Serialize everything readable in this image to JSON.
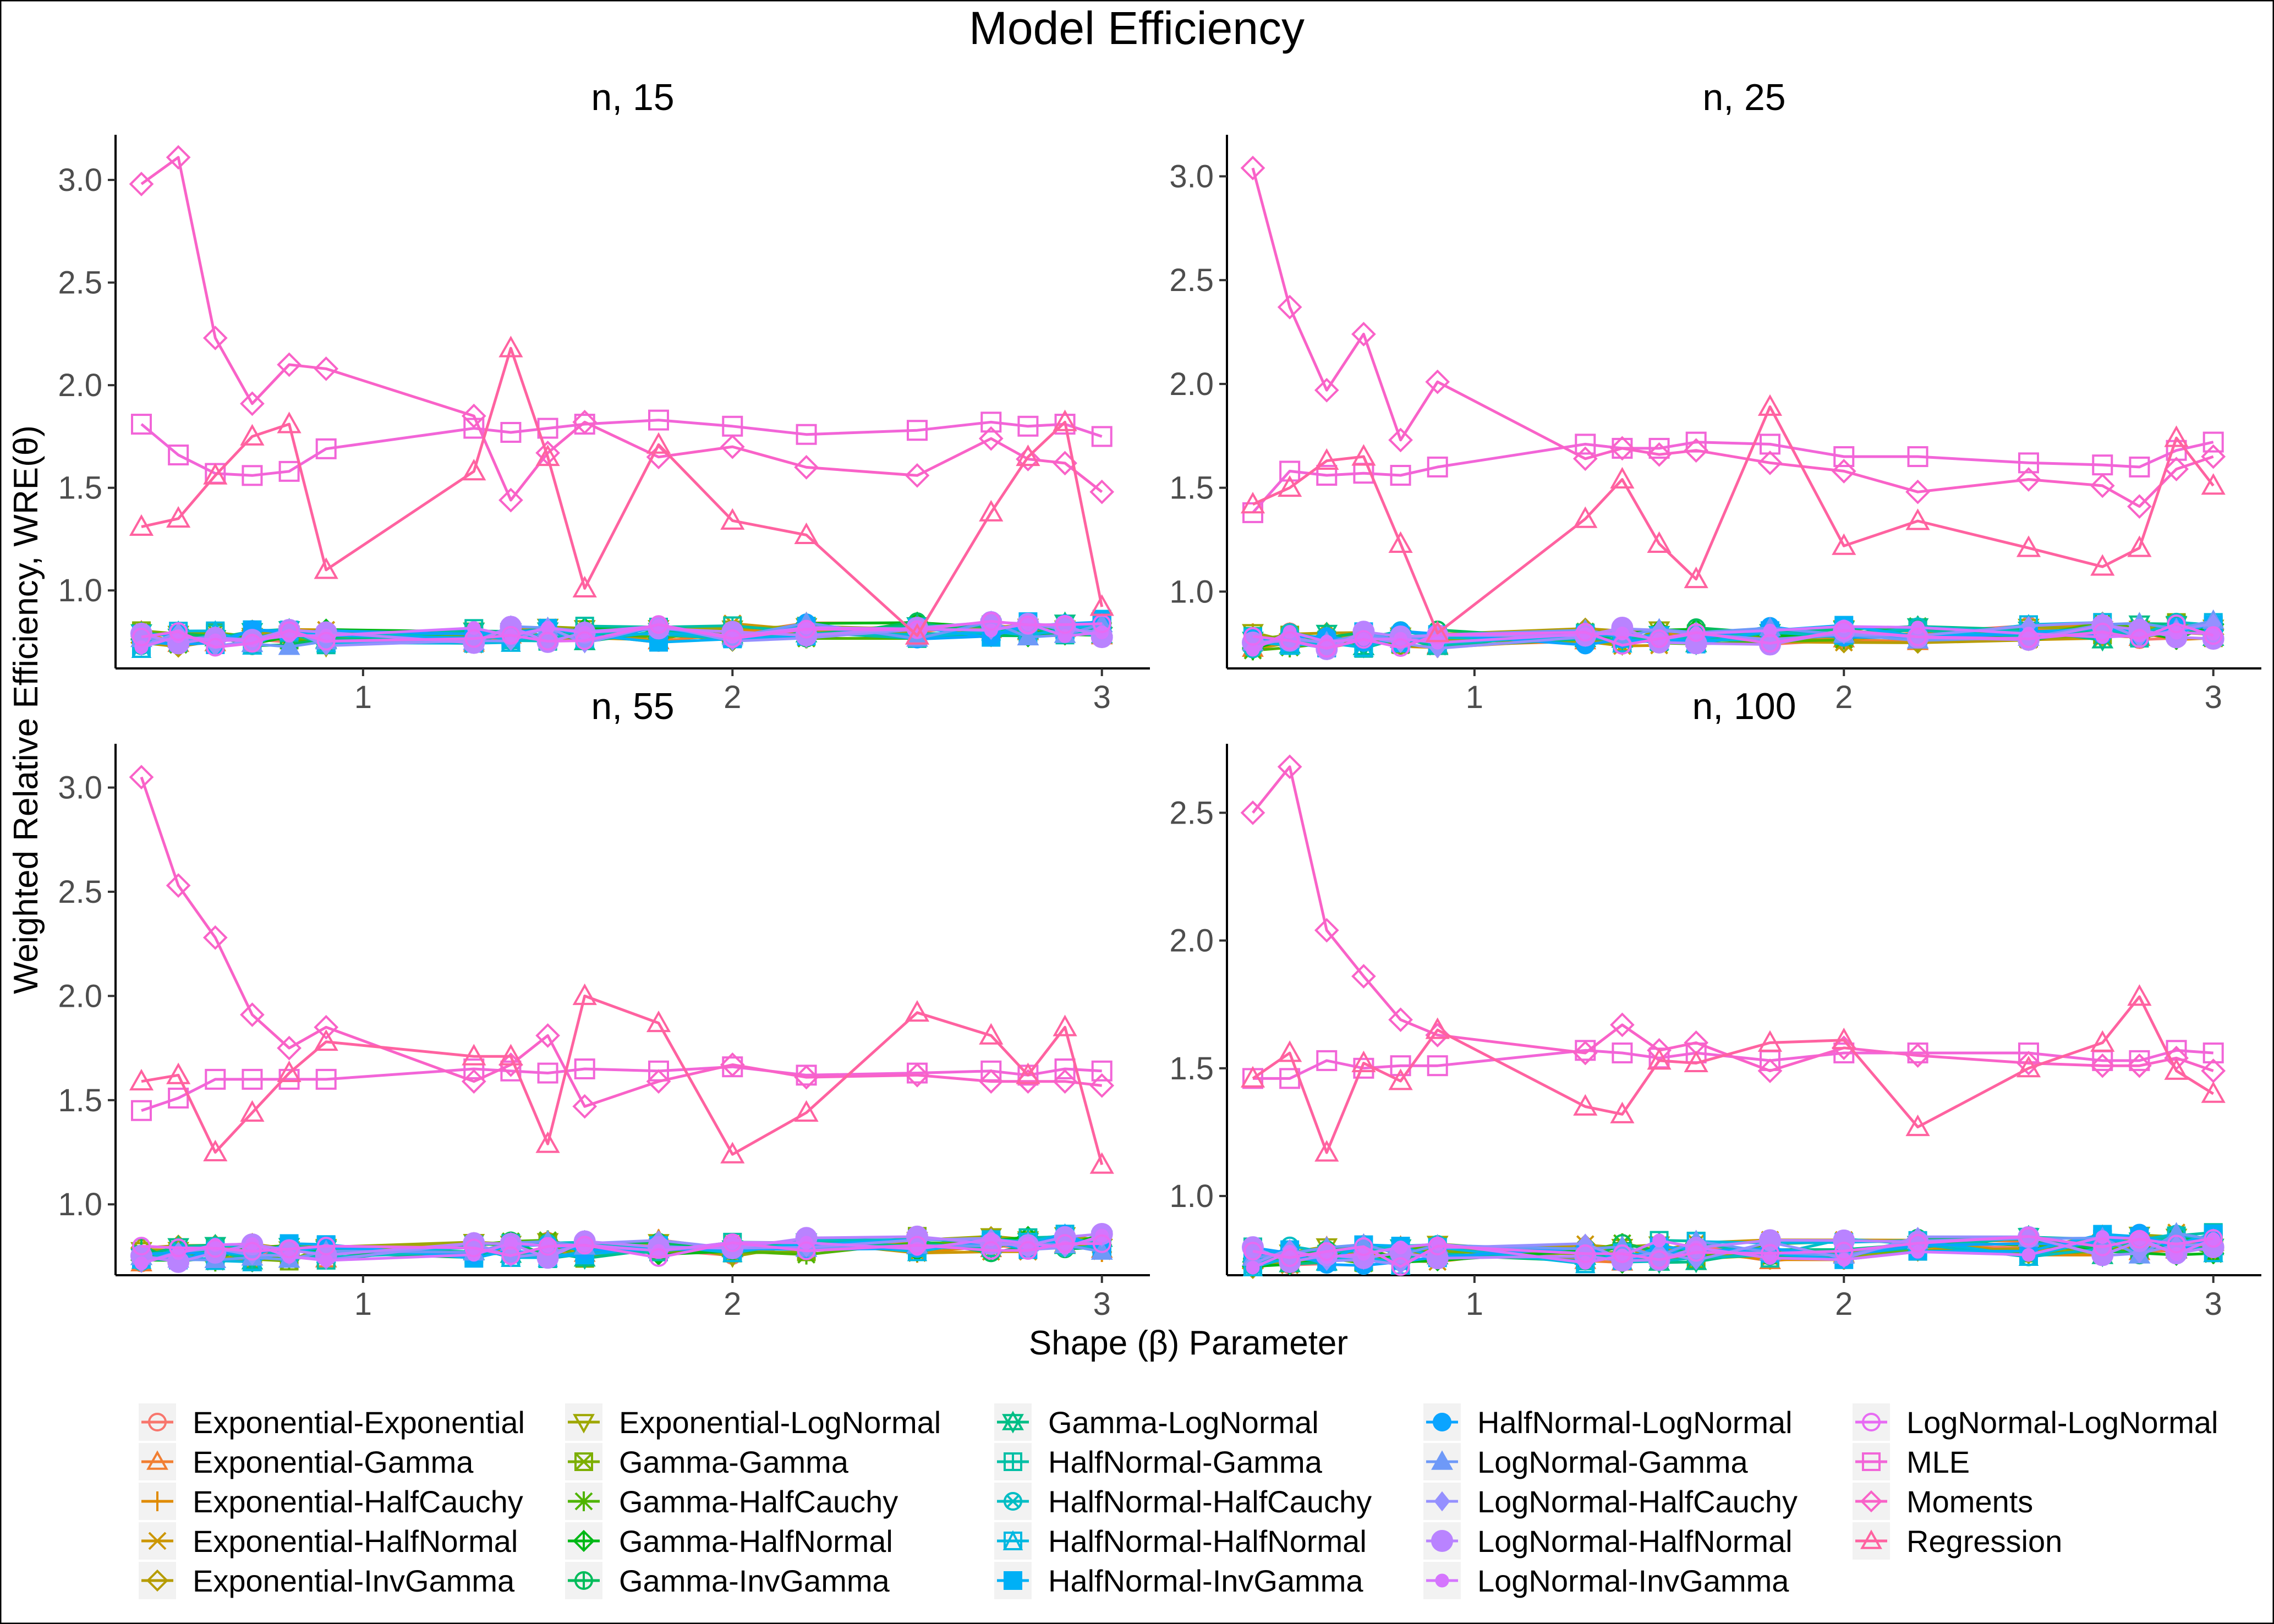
{
  "chart_data": {
    "type": "line",
    "title": "Model Efficiency",
    "xlabel": "Shape (β) Parameter",
    "ylabel": "Weighted Relative Efficiency, WRE(θ)",
    "x": [
      0.4,
      0.5,
      0.6,
      0.7,
      0.8,
      0.9,
      1.3,
      1.4,
      1.5,
      1.6,
      1.8,
      2.0,
      2.2,
      2.5,
      2.7,
      2.8,
      2.9,
      3.0
    ],
    "x_ticks": [
      1,
      2,
      3
    ],
    "x_tick_labels": [
      "1",
      "2",
      "3"
    ],
    "xlim": [
      0.33,
      3.13
    ],
    "grid": false,
    "legend_position": "bottom",
    "legend": [
      {
        "name": "Exponential-Exponential",
        "color": "#F8766D",
        "shape": "circle"
      },
      {
        "name": "Exponential-Gamma",
        "color": "#F17E32",
        "shape": "triangle"
      },
      {
        "name": "Exponential-HalfCauchy",
        "color": "#E08B00",
        "shape": "plus"
      },
      {
        "name": "Exponential-HalfNormal",
        "color": "#CC9600",
        "shape": "cross"
      },
      {
        "name": "Exponential-InvGamma",
        "color": "#B69C00",
        "shape": "diamond"
      },
      {
        "name": "Exponential-LogNormal",
        "color": "#9EA700",
        "shape": "triangle-down"
      },
      {
        "name": "Gamma-Gamma",
        "color": "#7CAE00",
        "shape": "square-cross"
      },
      {
        "name": "Gamma-HalfCauchy",
        "color": "#4FB400",
        "shape": "asterisk"
      },
      {
        "name": "Gamma-HalfNormal",
        "color": "#00B816",
        "shape": "diamond-plus"
      },
      {
        "name": "Gamma-InvGamma",
        "color": "#00BC5B",
        "shape": "circle-plus"
      },
      {
        "name": "Gamma-LogNormal",
        "color": "#00BE85",
        "shape": "star-triangle"
      },
      {
        "name": "HalfNormal-Gamma",
        "color": "#00BFA5",
        "shape": "square-plus"
      },
      {
        "name": "HalfNormal-HalfCauchy",
        "color": "#00BDC4",
        "shape": "circle-cross"
      },
      {
        "name": "HalfNormal-HalfNormal",
        "color": "#00B8E1",
        "shape": "square-triangle"
      },
      {
        "name": "HalfNormal-InvGamma",
        "color": "#00B0F6",
        "shape": "filled-square"
      },
      {
        "name": "HalfNormal-LogNormal",
        "color": "#0AA4FF",
        "shape": "filled-circle"
      },
      {
        "name": "LogNormal-Gamma",
        "color": "#6E99F8",
        "shape": "filled-triangle"
      },
      {
        "name": "LogNormal-HalfCauchy",
        "color": "#9590FF",
        "shape": "filled-diamond"
      },
      {
        "name": "LogNormal-HalfNormal",
        "color": "#B983FF",
        "shape": "filled-circle-large"
      },
      {
        "name": "LogNormal-InvGamma",
        "color": "#D575FE",
        "shape": "filled-circle-small"
      },
      {
        "name": "LogNormal-LogNormal",
        "color": "#E76BF3",
        "shape": "circle"
      },
      {
        "name": "MLE",
        "color": "#F265D8",
        "shape": "square"
      },
      {
        "name": "Moments",
        "color": "#F962C8",
        "shape": "diamond"
      },
      {
        "name": "Regression",
        "color": "#FF62A0",
        "shape": "triangle"
      }
    ],
    "panels": [
      {
        "title": "n, 15",
        "ylim": [
          0.62,
          3.22
        ],
        "y_ticks": [
          1.0,
          1.5,
          2.0,
          2.5,
          3.0
        ],
        "y_tick_labels": [
          "1.0",
          "1.5",
          "2.0",
          "2.5",
          "3.0"
        ],
        "series": [
          {
            "name": "MLE",
            "values": [
              1.81,
              1.66,
              1.57,
              1.56,
              1.58,
              1.69,
              1.79,
              1.77,
              1.79,
              1.81,
              1.83,
              1.8,
              1.76,
              1.78,
              1.82,
              1.8,
              1.81,
              1.75
            ]
          },
          {
            "name": "Moments",
            "values": [
              2.98,
              3.11,
              2.23,
              1.91,
              2.1,
              2.08,
              1.85,
              1.44,
              1.67,
              1.82,
              1.65,
              1.7,
              1.6,
              1.56,
              1.74,
              1.64,
              1.62,
              1.48
            ]
          },
          {
            "name": "Regression",
            "values": [
              1.31,
              1.35,
              1.56,
              1.75,
              1.81,
              1.1,
              1.58,
              2.18,
              1.65,
              1.01,
              1.71,
              1.34,
              1.27,
              0.78,
              1.38,
              1.65,
              1.82,
              0.92
            ]
          }
        ]
      },
      {
        "title": "n, 25",
        "ylim": [
          0.63,
          3.2
        ],
        "y_ticks": [
          1.0,
          1.5,
          2.0,
          2.5,
          3.0
        ],
        "y_tick_labels": [
          "1.0",
          "1.5",
          "2.0",
          "2.5",
          "3.0"
        ],
        "series": [
          {
            "name": "MLE",
            "values": [
              1.38,
              1.58,
              1.56,
              1.57,
              1.56,
              1.6,
              1.71,
              1.69,
              1.69,
              1.72,
              1.71,
              1.65,
              1.65,
              1.62,
              1.61,
              1.6,
              1.68,
              1.72
            ]
          },
          {
            "name": "Moments",
            "values": [
              3.04,
              2.37,
              1.97,
              2.24,
              1.73,
              2.01,
              1.64,
              1.69,
              1.66,
              1.68,
              1.62,
              1.58,
              1.48,
              1.54,
              1.51,
              1.41,
              1.59,
              1.65
            ]
          },
          {
            "name": "Regression",
            "values": [
              1.42,
              1.5,
              1.63,
              1.65,
              1.23,
              0.8,
              1.35,
              1.54,
              1.23,
              1.06,
              1.89,
              1.22,
              1.34,
              1.21,
              1.12,
              1.21,
              1.74,
              1.51
            ]
          }
        ]
      },
      {
        "title": "n, 55",
        "ylim": [
          0.66,
          3.21
        ],
        "y_ticks": [
          1.0,
          1.5,
          2.0,
          2.5,
          3.0
        ],
        "y_tick_labels": [
          "1.0",
          "1.5",
          "2.0",
          "2.5",
          "3.0"
        ],
        "series": [
          {
            "name": "MLE",
            "values": [
              1.45,
              1.51,
              1.6,
              1.6,
              1.6,
              1.6,
              1.65,
              1.64,
              1.63,
              1.65,
              1.64,
              1.66,
              1.62,
              1.63,
              1.64,
              1.62,
              1.65,
              1.64
            ]
          },
          {
            "name": "Moments",
            "values": [
              3.05,
              2.53,
              2.28,
              1.91,
              1.75,
              1.85,
              1.59,
              1.67,
              1.81,
              1.47,
              1.59,
              1.67,
              1.61,
              1.62,
              1.59,
              1.59,
              1.59,
              1.57
            ]
          },
          {
            "name": "Regression",
            "values": [
              1.59,
              1.62,
              1.25,
              1.44,
              1.63,
              1.78,
              1.71,
              1.71,
              1.29,
              2.0,
              1.87,
              1.24,
              1.44,
              1.92,
              1.81,
              1.62,
              1.85,
              1.19
            ]
          }
        ]
      },
      {
        "title": "n, 100",
        "ylim": [
          0.69,
          2.77
        ],
        "y_ticks": [
          1.0,
          1.5,
          2.0,
          2.5
        ],
        "y_tick_labels": [
          "1.0",
          "1.5",
          "2.0",
          "2.5"
        ],
        "series": [
          {
            "name": "MLE",
            "values": [
              1.46,
              1.46,
              1.53,
              1.5,
              1.51,
              1.51,
              1.57,
              1.56,
              1.54,
              1.56,
              1.53,
              1.56,
              1.56,
              1.56,
              1.53,
              1.53,
              1.57,
              1.56
            ]
          },
          {
            "name": "Moments",
            "values": [
              2.5,
              2.68,
              2.04,
              1.86,
              1.69,
              1.63,
              1.56,
              1.67,
              1.57,
              1.6,
              1.49,
              1.58,
              1.55,
              1.52,
              1.51,
              1.51,
              1.54,
              1.49
            ]
          },
          {
            "name": "Regression",
            "values": [
              1.46,
              1.56,
              1.17,
              1.52,
              1.45,
              1.65,
              1.35,
              1.32,
              1.53,
              1.52,
              1.6,
              1.61,
              1.27,
              1.5,
              1.6,
              1.78,
              1.49,
              1.4
            ]
          }
        ]
      }
    ]
  }
}
